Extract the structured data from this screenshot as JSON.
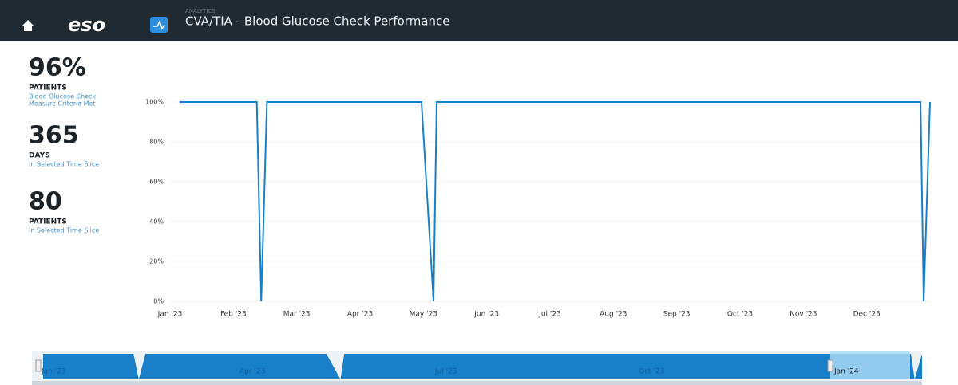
{
  "header": {
    "logo": "eso",
    "section": "ANALYTICS",
    "title": "CVA/TIA - Blood Glucose Check Performance"
  },
  "stats": [
    {
      "value": "96%",
      "unit": "PATIENTS",
      "caption": [
        "Blood Glucose Check",
        "Measure Criteria Met"
      ]
    },
    {
      "value": "365",
      "unit": "DAYS",
      "caption": [
        "In Selected Time Slice"
      ]
    },
    {
      "value": "80",
      "unit": "PATIENTS",
      "caption": [
        "In Selected Time Slice"
      ]
    }
  ],
  "chart_data": {
    "type": "line",
    "x": [
      0.15,
      1.37,
      1.44,
      1.53,
      3.97,
      4.16,
      4.21,
      11.85,
      11.9,
      12.0
    ],
    "series": [
      {
        "name": "Blood Glucose Check",
        "color": "#1a7fc9",
        "values": [
          100,
          100,
          0,
          100,
          100,
          0,
          100,
          100,
          0,
          100
        ]
      }
    ],
    "xlim": [
      0,
      12
    ],
    "xticks": [
      {
        "value": 0,
        "label": "Jan '23"
      },
      {
        "value": 1,
        "label": "Feb '23"
      },
      {
        "value": 2,
        "label": "Mar '23"
      },
      {
        "value": 3,
        "label": "Apr '23"
      },
      {
        "value": 4,
        "label": "May '23"
      },
      {
        "value": 5,
        "label": "Jun '23"
      },
      {
        "value": 6,
        "label": "Jul '23"
      },
      {
        "value": 7,
        "label": "Aug '23"
      },
      {
        "value": 8,
        "label": "Sep '23"
      },
      {
        "value": 9,
        "label": "Oct '23"
      },
      {
        "value": 10,
        "label": "Nov '23"
      },
      {
        "value": 11,
        "label": "Dec '23"
      }
    ],
    "ylim": [
      0,
      100
    ],
    "yticks": [
      {
        "value": 0,
        "label": "0%"
      },
      {
        "value": 20,
        "label": "20%"
      },
      {
        "value": 40,
        "label": "40%"
      },
      {
        "value": 60,
        "label": "60%"
      },
      {
        "value": 80,
        "label": "80%"
      },
      {
        "value": 100,
        "label": "100%"
      }
    ],
    "grid": true
  },
  "navigator": {
    "labels": [
      "Jan '23",
      "Apr '23",
      "Jul '23",
      "Oct '23",
      "Jan '24"
    ]
  }
}
